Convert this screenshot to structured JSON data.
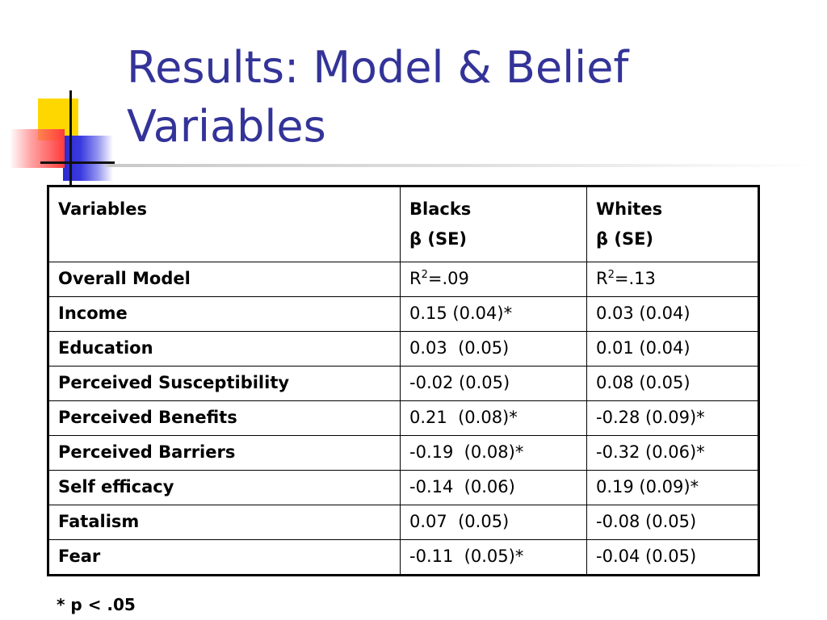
{
  "slide": {
    "title": "Results: Model & Belief Variables",
    "footnote": "* p < .05"
  },
  "table": {
    "headers": {
      "variables": "Variables",
      "blacks_line1": "Blacks",
      "blacks_line2": "β (SE)",
      "whites_line1": "Whites",
      "whites_line2": "β (SE)"
    },
    "overall_model": {
      "label": "Overall Model",
      "blacks_prefix": "R",
      "blacks_sup": "2",
      "blacks_value": "=.09",
      "whites_prefix": "R",
      "whites_sup": "2",
      "whites_value": "=.13"
    },
    "rows": [
      {
        "variable": "Income",
        "blacks": "0.15 (0.04)*",
        "whites": "0.03 (0.04)"
      },
      {
        "variable": "Education",
        "blacks": "0.03  (0.05)",
        "whites": "0.01 (0.04)"
      },
      {
        "variable": "Perceived Susceptibility",
        "blacks": "-0.02 (0.05)",
        "whites": "0.08 (0.05)"
      },
      {
        "variable": "Perceived Benefits",
        "blacks": "0.21  (0.08)*",
        "whites": "-0.28 (0.09)*"
      },
      {
        "variable": "Perceived Barriers",
        "blacks": "-0.19  (0.08)*",
        "whites": "-0.32 (0.06)*"
      },
      {
        "variable": "Self efficacy",
        "blacks": "-0.14  (0.06)",
        "whites": "0.19 (0.09)*"
      },
      {
        "variable": "Fatalism",
        "blacks": "0.07  (0.05)",
        "whites": "-0.08 (0.05)"
      },
      {
        "variable": "Fear",
        "blacks": "-0.11  (0.05)*",
        "whites": "-0.04 (0.05)"
      }
    ]
  }
}
